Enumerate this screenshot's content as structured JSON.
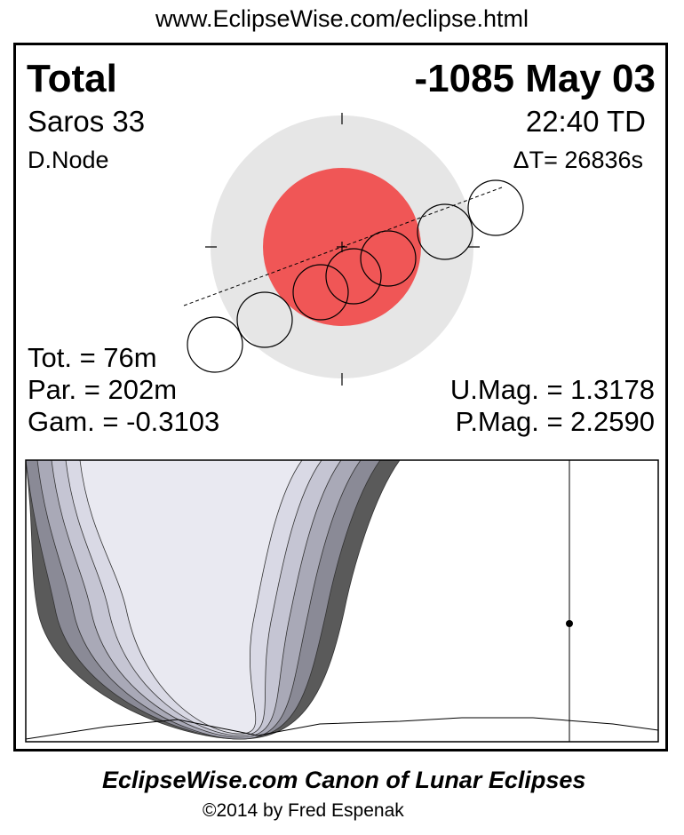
{
  "header": {
    "url": "www.EclipseWise.com/eclipse.html"
  },
  "eclipse": {
    "type": "Total",
    "date": "-1085 May 03",
    "saros": "Saros  33",
    "time": "22:40 TD",
    "node": "D.Node",
    "delta_t": "ΔT=  26836s",
    "tot": "Tot. =  76m",
    "par": "Par. = 202m",
    "gam": "Gam. = -0.3103",
    "umag": "U.Mag. = 1.3178",
    "pmag": "P.Mag. = 2.2590"
  },
  "colors": {
    "umbra": "#f05656",
    "penumbra": "#e6e6e6",
    "night": "#5a5a5a"
  },
  "footer": {
    "title": "EclipseWise.com Canon of Lunar Eclipses",
    "copyright": "©2014 by Fred Espenak"
  }
}
